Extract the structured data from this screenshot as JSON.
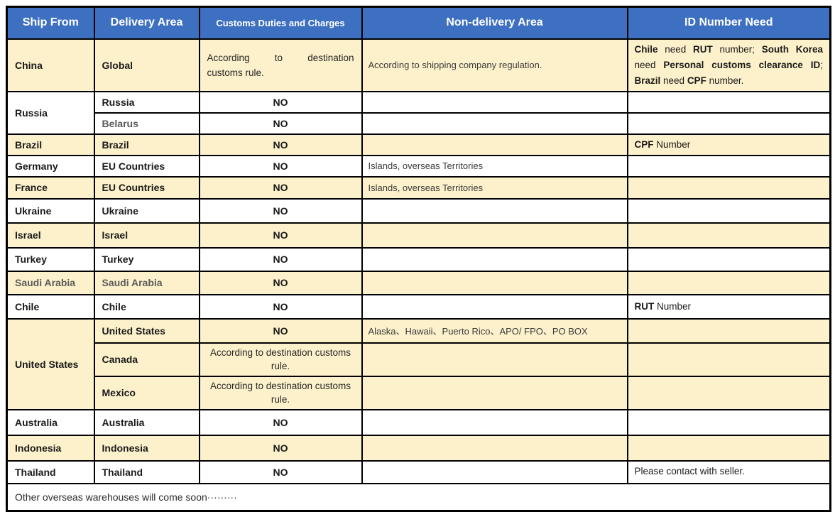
{
  "colors": {
    "header_bg": "#3e70c1",
    "stripe_bg": "#fdf1cb",
    "border": "#000000",
    "muted_text": "#595959"
  },
  "table": {
    "headers": [
      "Ship From",
      "Delivery Area",
      "Customs Duties and Charges",
      "Non-delivery Area",
      "ID Number Need"
    ],
    "groups": [
      {
        "ship_from": "China",
        "rows": [
          {
            "delivery": "Global",
            "customs_line1": "According to destination",
            "customs_line2": "customs rule.",
            "non_delivery": "According to shipping company regulation.",
            "id_rich": [
              {
                "t": "Chile",
                "b": 1
              },
              {
                "t": " need ",
                "b": 0
              },
              {
                "t": "RUT",
                "b": 1
              },
              {
                "t": " number; ",
                "b": 0
              },
              {
                "t": "South Korea",
                "b": 1
              },
              {
                "t": " need ",
                "b": 0
              },
              {
                "t": "Personal customs clearance ID",
                "b": 1
              },
              {
                "t": "; ",
                "b": 0
              },
              {
                "t": "Brazil",
                "b": 1
              },
              {
                "t": " need ",
                "b": 0
              },
              {
                "t": "CPF",
                "b": 1
              },
              {
                "t": " number.",
                "b": 0
              }
            ]
          }
        ]
      },
      {
        "ship_from": "Russia",
        "rows": [
          {
            "delivery": "Russia",
            "customs": "NO"
          },
          {
            "delivery": "Belarus",
            "customs": "NO"
          }
        ]
      },
      {
        "ship_from": "Brazil",
        "rows": [
          {
            "delivery": "Brazil",
            "customs": "NO",
            "id_rich": [
              {
                "t": "CPF",
                "b": 1
              },
              {
                "t": " Number",
                "b": 0
              }
            ]
          }
        ]
      },
      {
        "ship_from": "Germany",
        "rows": [
          {
            "delivery": "EU Countries",
            "customs": "NO",
            "non_delivery": "Islands, overseas Territories"
          }
        ]
      },
      {
        "ship_from": "France",
        "rows": [
          {
            "delivery": "EU Countries",
            "customs": "NO",
            "non_delivery": "Islands, overseas Territories"
          }
        ]
      },
      {
        "ship_from": "Ukraine",
        "rows": [
          {
            "delivery": "Ukraine",
            "customs": "NO"
          }
        ]
      },
      {
        "ship_from": "Israel",
        "rows": [
          {
            "delivery": "Israel",
            "customs": "NO"
          }
        ]
      },
      {
        "ship_from": "Turkey",
        "rows": [
          {
            "delivery": "Turkey",
            "customs": "NO"
          }
        ]
      },
      {
        "ship_from": "Saudi Arabia",
        "rows": [
          {
            "delivery": "Saudi Arabia",
            "customs": "NO"
          }
        ]
      },
      {
        "ship_from": "Chile",
        "rows": [
          {
            "delivery": "Chile",
            "customs": "NO",
            "id_rich": [
              {
                "t": "RUT",
                "b": 1
              },
              {
                "t": " Number",
                "b": 0
              }
            ]
          }
        ]
      },
      {
        "ship_from": "United States",
        "rows": [
          {
            "delivery": "United States",
            "customs": "NO",
            "non_delivery": "Alaska、Hawaii、Puerto Rico、APO/ FPO、PO BOX"
          },
          {
            "delivery": "Canada",
            "customs": "According to destination customs rule."
          },
          {
            "delivery": "Mexico",
            "customs": "According to destination customs rule."
          }
        ]
      },
      {
        "ship_from": "Australia",
        "rows": [
          {
            "delivery": "Australia",
            "customs": "NO"
          }
        ]
      },
      {
        "ship_from": "Indonesia",
        "rows": [
          {
            "delivery": "Indonesia",
            "customs": "NO"
          }
        ]
      },
      {
        "ship_from": "Thailand",
        "rows": [
          {
            "delivery": "Thailand",
            "customs": "NO",
            "id_text": "Please contact with seller."
          }
        ]
      }
    ],
    "footer": "Other overseas warehouses will come soon·········"
  }
}
